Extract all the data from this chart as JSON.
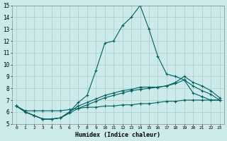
{
  "xlabel": "Humidex (Indice chaleur)",
  "background_color": "#cceaea",
  "grid_color": "#aacccc",
  "line_color": "#006060",
  "x": [
    0,
    1,
    2,
    3,
    4,
    5,
    6,
    7,
    8,
    9,
    10,
    11,
    12,
    13,
    14,
    15,
    16,
    17,
    18,
    19,
    20,
    21,
    22,
    23
  ],
  "line1": [
    6.5,
    6.0,
    5.7,
    5.4,
    5.4,
    5.5,
    6.0,
    6.8,
    7.4,
    9.5,
    11.8,
    12.0,
    13.3,
    14.0,
    15.0,
    13.0,
    10.7,
    9.2,
    9.0,
    8.7,
    7.6,
    7.3,
    7.0,
    7.0
  ],
  "line2": [
    6.5,
    6.0,
    5.7,
    5.4,
    5.4,
    5.5,
    5.9,
    6.3,
    6.6,
    6.9,
    7.2,
    7.4,
    7.6,
    7.8,
    7.9,
    8.0,
    8.1,
    8.2,
    8.4,
    8.7,
    8.2,
    7.8,
    7.5,
    7.0
  ],
  "line3": [
    6.5,
    6.0,
    5.7,
    5.4,
    5.4,
    5.5,
    6.0,
    6.5,
    6.8,
    7.1,
    7.4,
    7.6,
    7.8,
    7.9,
    8.1,
    8.1,
    8.1,
    8.2,
    8.5,
    9.0,
    8.5,
    8.2,
    7.8,
    7.2
  ],
  "line4": [
    6.5,
    6.1,
    6.1,
    6.1,
    6.1,
    6.1,
    6.2,
    6.3,
    6.4,
    6.4,
    6.5,
    6.5,
    6.6,
    6.6,
    6.7,
    6.7,
    6.8,
    6.9,
    6.9,
    7.0,
    7.0,
    7.0,
    7.0,
    7.0
  ],
  "ylim": [
    5,
    15
  ],
  "yticks": [
    5,
    6,
    7,
    8,
    9,
    10,
    11,
    12,
    13,
    14,
    15
  ],
  "xlim": [
    -0.5,
    23.5
  ]
}
